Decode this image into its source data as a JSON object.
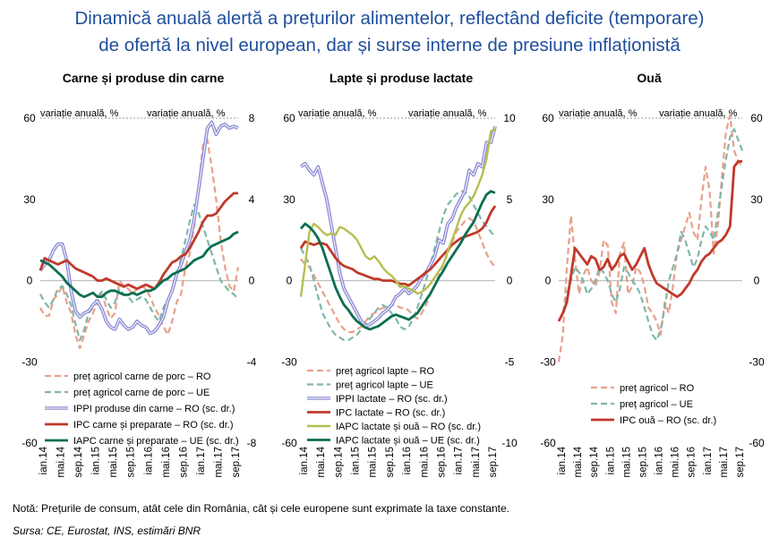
{
  "title_line1": "Dinamică anuală alertă a prețurilor alimentelor, reflectând deficite (temporare)",
  "title_line2": "de ofertă la nivel european, dar și surse interne de presiune inflaționistă",
  "note": "Notă: Prețurile de consum, atât cele din România, cât și cele europene sunt exprimate la taxe constante.",
  "source": "Sursa: CE, Eurostat, INS, estimări BNR",
  "chart_data": [
    {
      "type": "line",
      "title": "Carne și produse din carne",
      "left_axis_label": "variație anuală, %",
      "right_axis_label": "variație anuală, %",
      "ylim": [
        -60,
        60
      ],
      "yticks": [
        -60,
        -30,
        0,
        30,
        60
      ],
      "y2lim": [
        -8,
        8
      ],
      "y2ticks": [
        -8,
        -4,
        0,
        4,
        8
      ],
      "x_ticks": [
        "ian.14",
        "mai.14",
        "sep.14",
        "ian.15",
        "mai.15",
        "sep.15",
        "ian.16",
        "mai.16",
        "sep.16",
        "ian.17",
        "mai.17",
        "sep.17"
      ],
      "series": [
        {
          "name": "preț agricol carne de porc – RO",
          "axis": "left",
          "color": "#e8a08a",
          "dash": "7,4",
          "width": 2.2,
          "values": [
            -10,
            -13,
            -13,
            -7,
            -5,
            -2,
            -8,
            -12,
            -20,
            -25,
            -20,
            -15,
            -12,
            -8,
            -5,
            -10,
            -14,
            -12,
            0,
            -2,
            -3,
            -5,
            -3,
            -2,
            -3,
            -6,
            -10,
            -13,
            -17,
            -20,
            -15,
            -8,
            -5,
            5,
            10,
            20,
            35,
            50,
            52,
            42,
            30,
            15,
            5,
            -2,
            -4,
            5
          ]
        },
        {
          "name": "preț agricol carne de porc – UE",
          "axis": "left",
          "color": "#7fb7a8",
          "dash": "7,4",
          "width": 2.2,
          "values": [
            -5,
            -8,
            -10,
            -7,
            -3,
            -2,
            -5,
            -9,
            -16,
            -22,
            -18,
            -12,
            -10,
            -6,
            -4,
            -7,
            -10,
            -8,
            -3,
            -5,
            -6,
            -8,
            -7,
            -6,
            -7,
            -10,
            -13,
            -15,
            -10,
            -7,
            -3,
            2,
            8,
            15,
            22,
            28,
            25,
            20,
            15,
            10,
            5,
            0,
            -2,
            -4,
            -5,
            -7
          ]
        },
        {
          "name": "IPPI produse din carne – RO (sc. dr.)",
          "axis": "right",
          "color": "#8e8ed6",
          "dash": "",
          "width": 2.2,
          "double": true,
          "values": [
            0.5,
            0.8,
            1.0,
            1.5,
            1.8,
            1.8,
            1.0,
            -0.5,
            -1.5,
            -1.8,
            -1.6,
            -1.5,
            -1.2,
            -1.0,
            -1.4,
            -2.0,
            -2.3,
            -2.4,
            -1.9,
            -2.2,
            -2.4,
            -2.3,
            -2.0,
            -2.2,
            -2.3,
            -2.6,
            -2.5,
            -2.2,
            -1.8,
            -1.0,
            -0.5,
            0.3,
            0.8,
            1.4,
            2.0,
            3.0,
            4.5,
            6.0,
            7.5,
            7.8,
            7.2,
            7.6,
            7.7,
            7.5,
            7.6,
            7.5
          ]
        },
        {
          "name": "IPC carne și preparate – RO  (sc. dr.)",
          "axis": "right",
          "color": "#c0392b",
          "dash": "",
          "width": 2.8,
          "values": [
            0.5,
            1.1,
            1.0,
            0.9,
            0.8,
            0.9,
            1.0,
            0.8,
            0.6,
            0.5,
            0.4,
            0.3,
            0.2,
            0.0,
            0.0,
            0.1,
            0.0,
            -0.1,
            -0.2,
            -0.3,
            -0.2,
            -0.3,
            -0.4,
            -0.3,
            -0.2,
            -0.3,
            -0.4,
            -0.1,
            0.3,
            0.6,
            0.9,
            1.0,
            1.2,
            1.3,
            1.6,
            2.0,
            2.4,
            2.9,
            3.2,
            3.2,
            3.3,
            3.6,
            3.9,
            4.1,
            4.3,
            4.3
          ]
        },
        {
          "name": "IAPC carne și preparate – UE  (sc. dr.)",
          "axis": "right",
          "color": "#0b6e4f",
          "dash": "",
          "width": 2.8,
          "values": [
            1.0,
            0.9,
            0.8,
            0.6,
            0.4,
            0.2,
            -0.1,
            -0.3,
            -0.5,
            -0.7,
            -0.8,
            -0.7,
            -0.6,
            -0.8,
            -0.8,
            -0.6,
            -0.5,
            -0.5,
            -0.6,
            -0.7,
            -0.7,
            -0.6,
            -0.7,
            -0.6,
            -0.5,
            -0.5,
            -0.4,
            -0.2,
            0.0,
            0.1,
            0.3,
            0.4,
            0.5,
            0.6,
            0.8,
            1.0,
            1.1,
            1.2,
            1.5,
            1.7,
            1.8,
            1.9,
            2.0,
            2.1,
            2.3,
            2.4
          ]
        }
      ]
    },
    {
      "type": "line",
      "title": "Lapte și produse lactate",
      "left_axis_label": "variație anuală, %",
      "right_axis_label": "variație anuală, %",
      "ylim": [
        -60,
        60
      ],
      "yticks": [
        -60,
        -30,
        0,
        30,
        60
      ],
      "y2lim": [
        -10,
        10
      ],
      "y2ticks": [
        -10,
        -5,
        0,
        5,
        10
      ],
      "x_ticks": [
        "ian.14",
        "mai.14",
        "sep.14",
        "ian.15",
        "mai.15",
        "sep.15",
        "ian.16",
        "mai.16",
        "sep.16",
        "ian.17",
        "mai.17",
        "sep.17"
      ],
      "series": [
        {
          "name": "preț agricol lapte – RO",
          "axis": "left",
          "color": "#e8a08a",
          "dash": "7,4",
          "width": 2.2,
          "values": [
            8,
            6,
            5,
            2,
            -1,
            -4,
            -7,
            -10,
            -13,
            -16,
            -18,
            -19,
            -19,
            -18,
            -17,
            -15,
            -13,
            -12,
            -11,
            -10,
            -10,
            -9,
            -9,
            -10,
            -10,
            -11,
            -13,
            -14,
            -12,
            -9,
            -5,
            -2,
            2,
            6,
            10,
            14,
            18,
            20,
            22,
            23,
            22,
            18,
            14,
            10,
            7,
            5
          ]
        },
        {
          "name": "preț agricol lapte – UE",
          "axis": "left",
          "color": "#7fb7a8",
          "dash": "7,4",
          "width": 2.2,
          "values": [
            12,
            9,
            6,
            0,
            -6,
            -12,
            -15,
            -18,
            -20,
            -21,
            -22,
            -22,
            -21,
            -20,
            -18,
            -16,
            -14,
            -12,
            -10,
            -9,
            -10,
            -12,
            -14,
            -17,
            -18,
            -17,
            -14,
            -10,
            -5,
            0,
            6,
            12,
            18,
            24,
            28,
            30,
            32,
            33,
            33,
            31,
            28,
            25,
            22,
            20,
            18,
            16
          ]
        },
        {
          "name": "IPPI lactate – RO (sc. dr.)",
          "axis": "right",
          "color": "#8e8ed6",
          "dash": "",
          "width": 2.2,
          "double": true,
          "values": [
            7.0,
            7.2,
            6.8,
            6.5,
            7.0,
            6.0,
            5.0,
            3.5,
            2.0,
            0.5,
            -0.5,
            -1.0,
            -1.5,
            -2.0,
            -2.5,
            -2.8,
            -2.7,
            -2.5,
            -2.3,
            -2.0,
            -1.8,
            -1.5,
            -1.0,
            -0.8,
            -0.5,
            -0.8,
            -0.6,
            -0.3,
            0.2,
            0.5,
            1.0,
            1.5,
            2.5,
            2.3,
            3.5,
            3.8,
            4.5,
            5.0,
            5.5,
            6.8,
            6.5,
            7.2,
            7.0,
            8.5,
            8.5,
            9.5
          ]
        },
        {
          "name": "IPC lactate – RO (sc. dr.)",
          "axis": "right",
          "color": "#c0392b",
          "dash": "",
          "width": 2.8,
          "values": [
            2.0,
            2.4,
            2.3,
            2.2,
            2.3,
            2.3,
            2.2,
            1.8,
            1.4,
            1.1,
            0.9,
            0.8,
            0.7,
            0.5,
            0.4,
            0.3,
            0.2,
            0.1,
            0.1,
            0.0,
            0.0,
            0.0,
            -0.1,
            -0.2,
            -0.2,
            -0.3,
            -0.1,
            0.1,
            0.3,
            0.5,
            0.7,
            1.0,
            1.3,
            1.6,
            1.9,
            2.2,
            2.4,
            2.6,
            2.7,
            2.8,
            2.9,
            3.0,
            3.2,
            3.6,
            4.2,
            4.6
          ]
        },
        {
          "name": "IAPC lactate și ouă – RO (sc. dr.)",
          "axis": "right",
          "color": "#b6bf4f",
          "dash": "",
          "width": 2.4,
          "values": [
            -1.0,
            1.0,
            3.0,
            3.5,
            3.3,
            3.0,
            2.8,
            2.9,
            2.8,
            3.3,
            3.2,
            3.0,
            2.8,
            2.5,
            2.0,
            1.5,
            1.3,
            1.5,
            1.2,
            0.8,
            0.5,
            0.3,
            0.0,
            -0.4,
            -0.3,
            -0.5,
            -0.6,
            -0.8,
            -0.7,
            -0.5,
            -0.2,
            0.2,
            0.6,
            1.0,
            1.8,
            2.5,
            3.2,
            4.0,
            4.5,
            4.8,
            5.2,
            5.8,
            6.5,
            7.5,
            9.2,
            9.3
          ]
        },
        {
          "name": "IAPC lactate și ouă – UE (sc. dr.)",
          "axis": "right",
          "color": "#0b6e4f",
          "dash": "",
          "width": 2.8,
          "values": [
            3.2,
            3.5,
            3.3,
            3.0,
            2.6,
            2.0,
            1.2,
            0.4,
            -0.4,
            -1.0,
            -1.5,
            -1.8,
            -2.2,
            -2.5,
            -2.7,
            -2.9,
            -3.0,
            -2.9,
            -2.8,
            -2.6,
            -2.4,
            -2.2,
            -2.1,
            -2.2,
            -2.3,
            -2.4,
            -2.2,
            -2.0,
            -1.6,
            -1.2,
            -0.8,
            -0.3,
            0.2,
            0.6,
            1.1,
            1.5,
            1.9,
            2.3,
            2.8,
            3.2,
            3.6,
            4.2,
            4.8,
            5.3,
            5.5,
            5.4
          ]
        }
      ]
    },
    {
      "type": "line",
      "title": "Ouă",
      "left_axis_label": "variație anuală, %",
      "right_axis_label": "variație anuală, %",
      "ylim": [
        -60,
        60
      ],
      "yticks": [
        -60,
        -30,
        0,
        30,
        60
      ],
      "y2lim": [
        -60,
        60
      ],
      "y2ticks": [
        -60,
        -30,
        0,
        30,
        60
      ],
      "x_ticks": [
        "ian.14",
        "mai.14",
        "sep.14",
        "ian.15",
        "mai.15",
        "sep.15",
        "ian.16",
        "mai.16",
        "sep.16",
        "ian.17",
        "mai.17",
        "sep.17"
      ],
      "series": [
        {
          "name": "preț agricol – RO",
          "axis": "left",
          "color": "#e8a08a",
          "dash": "7,4",
          "width": 2.2,
          "values": [
            -30,
            -20,
            5,
            24,
            8,
            -5,
            2,
            5,
            0,
            -2,
            3,
            15,
            13,
            -8,
            -12,
            10,
            14,
            -5,
            -2,
            5,
            3,
            -2,
            -10,
            -12,
            -15,
            -20,
            -8,
            -12,
            -2,
            10,
            15,
            20,
            25,
            18,
            15,
            30,
            42,
            33,
            10,
            20,
            38,
            55,
            61,
            48,
            44,
            42
          ]
        },
        {
          "name": "preț agricol – UE",
          "axis": "left",
          "color": "#7fb7a8",
          "dash": "7,4",
          "width": 2.2,
          "values": [
            -15,
            -12,
            -5,
            0,
            5,
            3,
            0,
            -5,
            -3,
            0,
            5,
            3,
            0,
            -5,
            -8,
            -3,
            5,
            3,
            0,
            -2,
            -5,
            -10,
            -15,
            -20,
            -22,
            -18,
            -10,
            0,
            5,
            10,
            18,
            15,
            10,
            5,
            8,
            15,
            20,
            18,
            15,
            25,
            35,
            45,
            53,
            56,
            52,
            48
          ]
        },
        {
          "name": "IPC ouă – RO  (sc. dr.)",
          "axis": "right",
          "color": "#c0392b",
          "dash": "",
          "width": 2.8,
          "values": [
            -15,
            -12,
            -8,
            2,
            12,
            10,
            8,
            6,
            9,
            8,
            4,
            5,
            8,
            4,
            6,
            9,
            10,
            7,
            4,
            6,
            9,
            12,
            6,
            2,
            -1,
            -2,
            -3,
            -4,
            -5,
            -6,
            -5,
            -3,
            -1,
            2,
            4,
            7,
            9,
            10,
            12,
            14,
            15,
            17,
            20,
            42,
            44,
            44
          ]
        }
      ]
    }
  ],
  "colors": {
    "title": "#1f4e9c",
    "axis": "#bfbfbf",
    "reference_line": "#999999"
  }
}
